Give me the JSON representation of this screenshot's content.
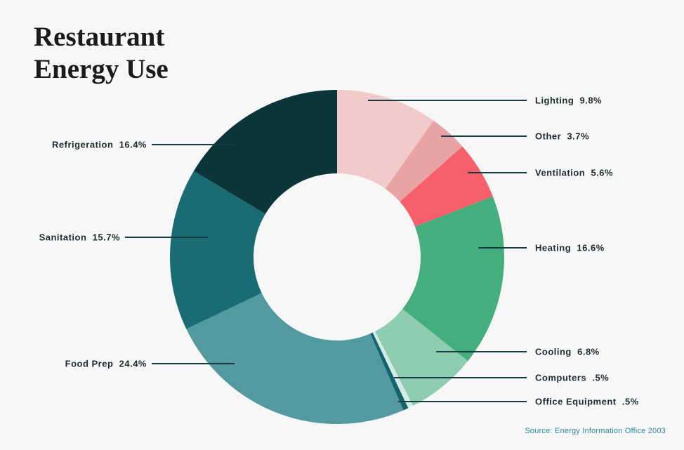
{
  "title_line1": "Restaurant",
  "title_line2": "Energy Use",
  "source": "Source: Energy Information Office 2003",
  "chart_data": {
    "type": "pie",
    "donut": true,
    "title": "Restaurant Energy Use",
    "slices": [
      {
        "name": "Lighting",
        "value": 9.8,
        "label": "Lighting  9.8%",
        "color": "#f2caca"
      },
      {
        "name": "Other",
        "value": 3.7,
        "label": "Other  3.7%",
        "color": "#e8a4a4"
      },
      {
        "name": "Ventilation",
        "value": 5.6,
        "label": "Ventilation  5.6%",
        "color": "#f7606a"
      },
      {
        "name": "Heating",
        "value": 16.6,
        "label": "Heating  16.6%",
        "color": "#45ae7d"
      },
      {
        "name": "Cooling",
        "value": 6.8,
        "label": "Cooling  6.8%",
        "color": "#8ecdb0"
      },
      {
        "name": "Computers",
        "value": 0.5,
        "label": "Computers  .5%",
        "color": "#d5ebe5"
      },
      {
        "name": "Office Equipment",
        "value": 0.5,
        "label": "Office Equipment  .5%",
        "color": "#13636c"
      },
      {
        "name": "Food Prep",
        "value": 24.4,
        "label": "Food Prep  24.4%",
        "color": "#5299a0"
      },
      {
        "name": "Sanitation",
        "value": 15.7,
        "label": "Sanitation  15.7%",
        "color": "#196b74"
      },
      {
        "name": "Refrigeration",
        "value": 16.4,
        "label": "Refrigeration  16.4%",
        "color": "#0b3539"
      }
    ],
    "leader_color": "#163c42"
  }
}
